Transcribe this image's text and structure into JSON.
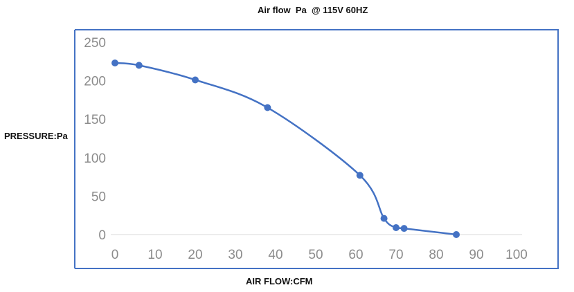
{
  "chart_data": {
    "type": "line",
    "title": "Air flow  Pa  @ 115V 60HZ",
    "xlabel": "AIR FLOW:CFM",
    "ylabel": "PRESSURE:Pa",
    "xlim": [
      0,
      100
    ],
    "ylim": [
      0,
      250
    ],
    "x_ticks": [
      "0",
      "10",
      "20",
      "30",
      "40",
      "50",
      "60",
      "70",
      "80",
      "90",
      "100"
    ],
    "y_ticks": [
      "0",
      "50",
      "100",
      "150",
      "200",
      "250"
    ],
    "grid": false,
    "legend": "none",
    "series": [
      {
        "x": [
          0,
          6,
          20,
          38,
          61,
          67,
          70,
          72,
          85
        ],
        "y": [
          223,
          220,
          201,
          165,
          77,
          21,
          9,
          8,
          0
        ],
        "color": "#4472c4"
      }
    ]
  }
}
